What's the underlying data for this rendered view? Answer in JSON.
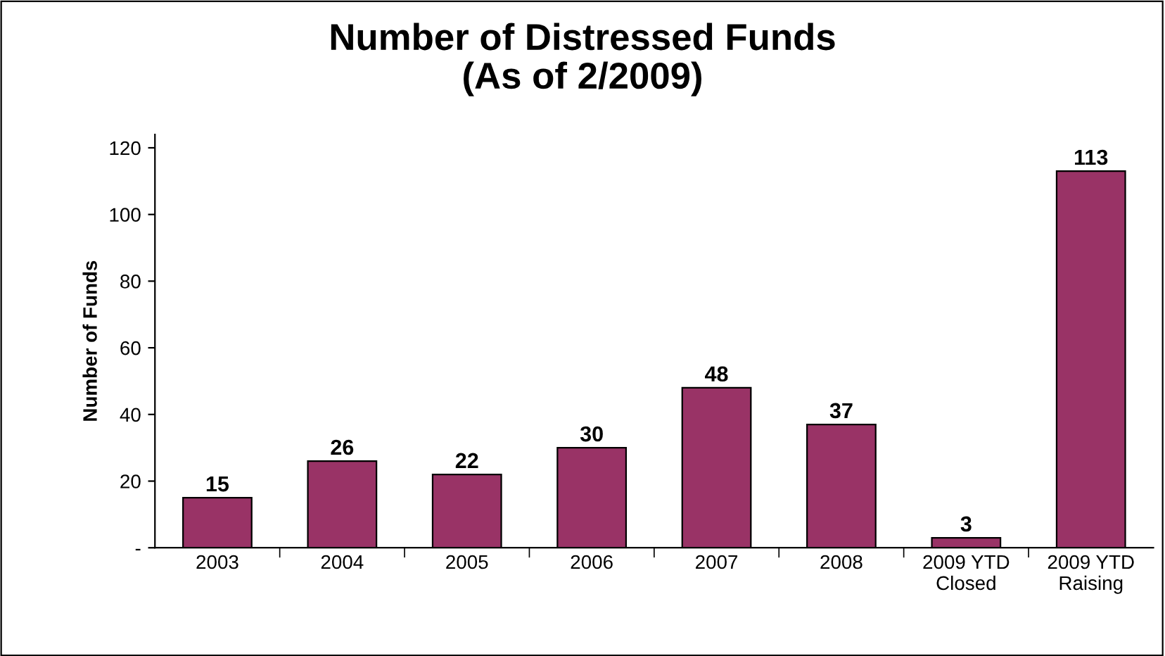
{
  "chart_data": {
    "type": "bar",
    "title": "Number of Distressed Funds\n(As of 2/2009)",
    "ylabel": "Number of Funds",
    "categories": [
      "2003",
      "2004",
      "2005",
      "2006",
      "2007",
      "2008",
      "2009 YTD\nClosed",
      "2009 YTD\nRaising"
    ],
    "values": [
      15,
      26,
      22,
      30,
      48,
      37,
      3,
      113
    ],
    "color": "#993366",
    "ylim": [
      0,
      124
    ],
    "yticks": [
      {
        "value": 0,
        "label": "-"
      },
      20,
      40,
      60,
      80,
      100,
      120
    ],
    "data_labels": true,
    "grid": false,
    "legend": false
  }
}
